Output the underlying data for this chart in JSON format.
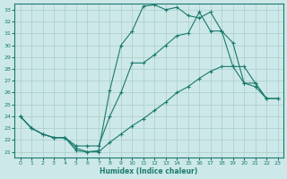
{
  "xlabel": "Humidex (Indice chaleur)",
  "xlim": [
    -0.5,
    23.5
  ],
  "ylim": [
    20.5,
    33.5
  ],
  "xticks": [
    0,
    1,
    2,
    3,
    4,
    5,
    6,
    7,
    8,
    9,
    10,
    11,
    12,
    13,
    14,
    15,
    16,
    17,
    18,
    19,
    20,
    21,
    22,
    23
  ],
  "yticks": [
    21,
    22,
    23,
    24,
    25,
    26,
    27,
    28,
    29,
    30,
    31,
    32,
    33
  ],
  "bg_color": "#cde8e8",
  "line_color": "#1a7a6e",
  "grid_color": "#aacccc",
  "line1_x": [
    0,
    1,
    2,
    3,
    4,
    5,
    6,
    7,
    8,
    9,
    10,
    11,
    12,
    13,
    14,
    15,
    16,
    17,
    18,
    19,
    20,
    21,
    22
  ],
  "line1_y": [
    24.0,
    23.0,
    22.5,
    22.2,
    22.2,
    21.1,
    21.0,
    21.1,
    26.2,
    30.0,
    31.2,
    33.3,
    33.4,
    33.0,
    33.2,
    32.5,
    32.3,
    32.8,
    31.2,
    30.2,
    26.8,
    26.8,
    25.5
  ],
  "line2_x": [
    0,
    1,
    2,
    3,
    4,
    5,
    6,
    7,
    8,
    9,
    10,
    11,
    12,
    13,
    14,
    15,
    16,
    17,
    18,
    19,
    20,
    21,
    22,
    23
  ],
  "line2_y": [
    24.0,
    23.0,
    22.5,
    22.2,
    22.2,
    21.5,
    21.5,
    21.5,
    24.0,
    26.0,
    28.5,
    28.5,
    29.2,
    30.0,
    30.8,
    31.0,
    32.8,
    31.2,
    31.2,
    28.2,
    28.2,
    26.8,
    25.5,
    25.5
  ],
  "line3_x": [
    0,
    1,
    2,
    3,
    4,
    5,
    6,
    7,
    8,
    9,
    10,
    11,
    12,
    13,
    14,
    15,
    16,
    17,
    18,
    19,
    20,
    21,
    22,
    23
  ],
  "line3_y": [
    24.0,
    23.0,
    22.5,
    22.2,
    22.2,
    21.3,
    21.0,
    21.0,
    21.8,
    22.5,
    23.2,
    23.8,
    24.5,
    25.2,
    26.0,
    26.5,
    27.2,
    27.8,
    28.2,
    28.2,
    26.8,
    26.5,
    25.5,
    25.5
  ]
}
